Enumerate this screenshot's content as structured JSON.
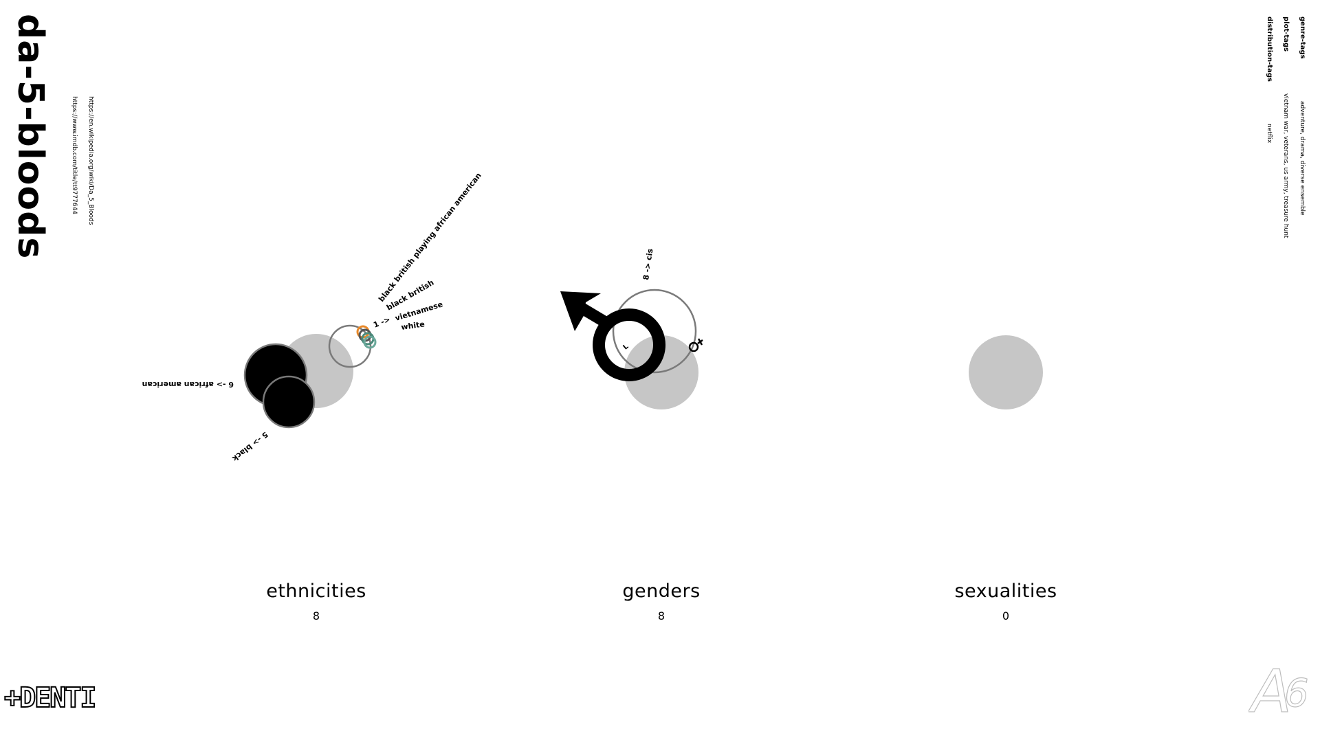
{
  "movie": {
    "title": "da-5-bloods",
    "links": [
      "https://en.wikipedia.org/wiki/Da_5_Bloods",
      "https://www.imdb.com/title/tt9777644"
    ]
  },
  "tags": [
    {
      "name": "genre-tags",
      "value": "adventure, drama, diverse ensemble"
    },
    {
      "name": "plot-tags",
      "value": "vietnam war, veterans, us army, treasure hunt"
    },
    {
      "name": "distribution-tags",
      "value": "netflix"
    }
  ],
  "categories": {
    "ethnicities": {
      "label": "ethnicities",
      "count": "8",
      "items": [
        {
          "name": "african american",
          "count": 6,
          "text": "6 -> african american"
        },
        {
          "name": "black",
          "count": 5,
          "text": "5 -> black"
        },
        {
          "name": "black british playing african american",
          "count": 1,
          "text": "black british playing african american"
        },
        {
          "name": "black british",
          "count": 1,
          "text": "black british"
        },
        {
          "name": "vietnamese",
          "count": 1,
          "text": "vietnamese"
        },
        {
          "name": "white",
          "count": 1,
          "text": "white"
        }
      ],
      "small_group_text": "1 ->",
      "small_group_colors": [
        "#e8892a",
        "#555555",
        "#4a8a7a",
        "#6aa89a"
      ]
    },
    "genders": {
      "label": "genders",
      "count": "8",
      "items": [
        {
          "name": "cis",
          "count": 8,
          "text": "8 -> cis"
        }
      ],
      "symbol_label": "L",
      "symbols": [
        "male-icon",
        "female-icon"
      ]
    },
    "sexualities": {
      "label": "sexualities",
      "count": "0",
      "items": []
    }
  },
  "colors": {
    "base_circle": "#c6c6c6",
    "ring": "#7a7a7a",
    "fill": "#000000"
  },
  "logos": {
    "left": "+DENTI",
    "right": "A6"
  }
}
